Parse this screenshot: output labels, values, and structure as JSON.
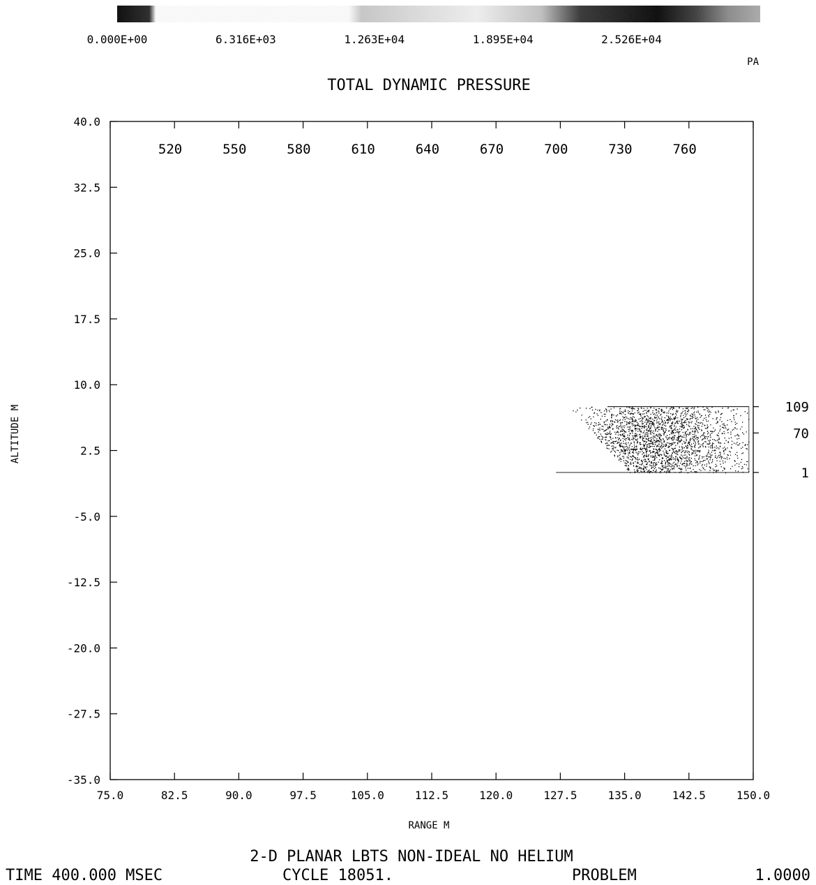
{
  "chart_data": {
    "type": "heatmap",
    "title": "TOTAL DYNAMIC PRESSURE",
    "xlabel": "RANGE M",
    "ylabel": "ALTITUDE M",
    "xlim": [
      75.0,
      150.0
    ],
    "ylim": [
      -35.0,
      40.0
    ],
    "x_ticks": [
      "75.0",
      "82.5",
      "90.0",
      "97.5",
      "105.0",
      "112.5",
      "120.0",
      "127.5",
      "135.0",
      "142.5",
      "150.0"
    ],
    "y_ticks": [
      "40.0",
      "32.5",
      "25.0",
      "17.5",
      "10.0",
      "2.5",
      "-5.0",
      "-12.5",
      "-20.0",
      "-27.5",
      "-35.0"
    ],
    "colorbar": {
      "unit": "PA",
      "min": 0,
      "max": 31580,
      "labels": [
        "0.000E+00",
        "6.316E+03",
        "1.263E+04",
        "1.895E+04",
        "2.526E+04"
      ],
      "values": [
        0,
        6316,
        12630,
        18950,
        25260
      ]
    },
    "top_index_labels": [
      "520",
      "550",
      "580",
      "610",
      "640",
      "670",
      "700",
      "730",
      "760"
    ],
    "top_index_x": [
      82.0,
      89.5,
      97.0,
      104.5,
      112.0,
      119.5,
      127.0,
      134.5,
      142.0
    ],
    "right_index_labels": [
      "109",
      "70",
      "1"
    ],
    "right_index_y": [
      7.5,
      4.5,
      0.0
    ],
    "pressure_region": {
      "x_start": 127.0,
      "x_end": 149.5,
      "y_bottom": 0.0,
      "y_top": 7.5,
      "peak_x": 138.5,
      "peak_y": 3.5
    }
  },
  "footer": {
    "line1": "2-D PLANAR LBTS NON-IDEAL NO HELIUM",
    "time": "TIME 400.000 MSEC",
    "cycle": "CYCLE  18051.",
    "problem_label": "PROBLEM",
    "problem_value": "1.0000"
  }
}
